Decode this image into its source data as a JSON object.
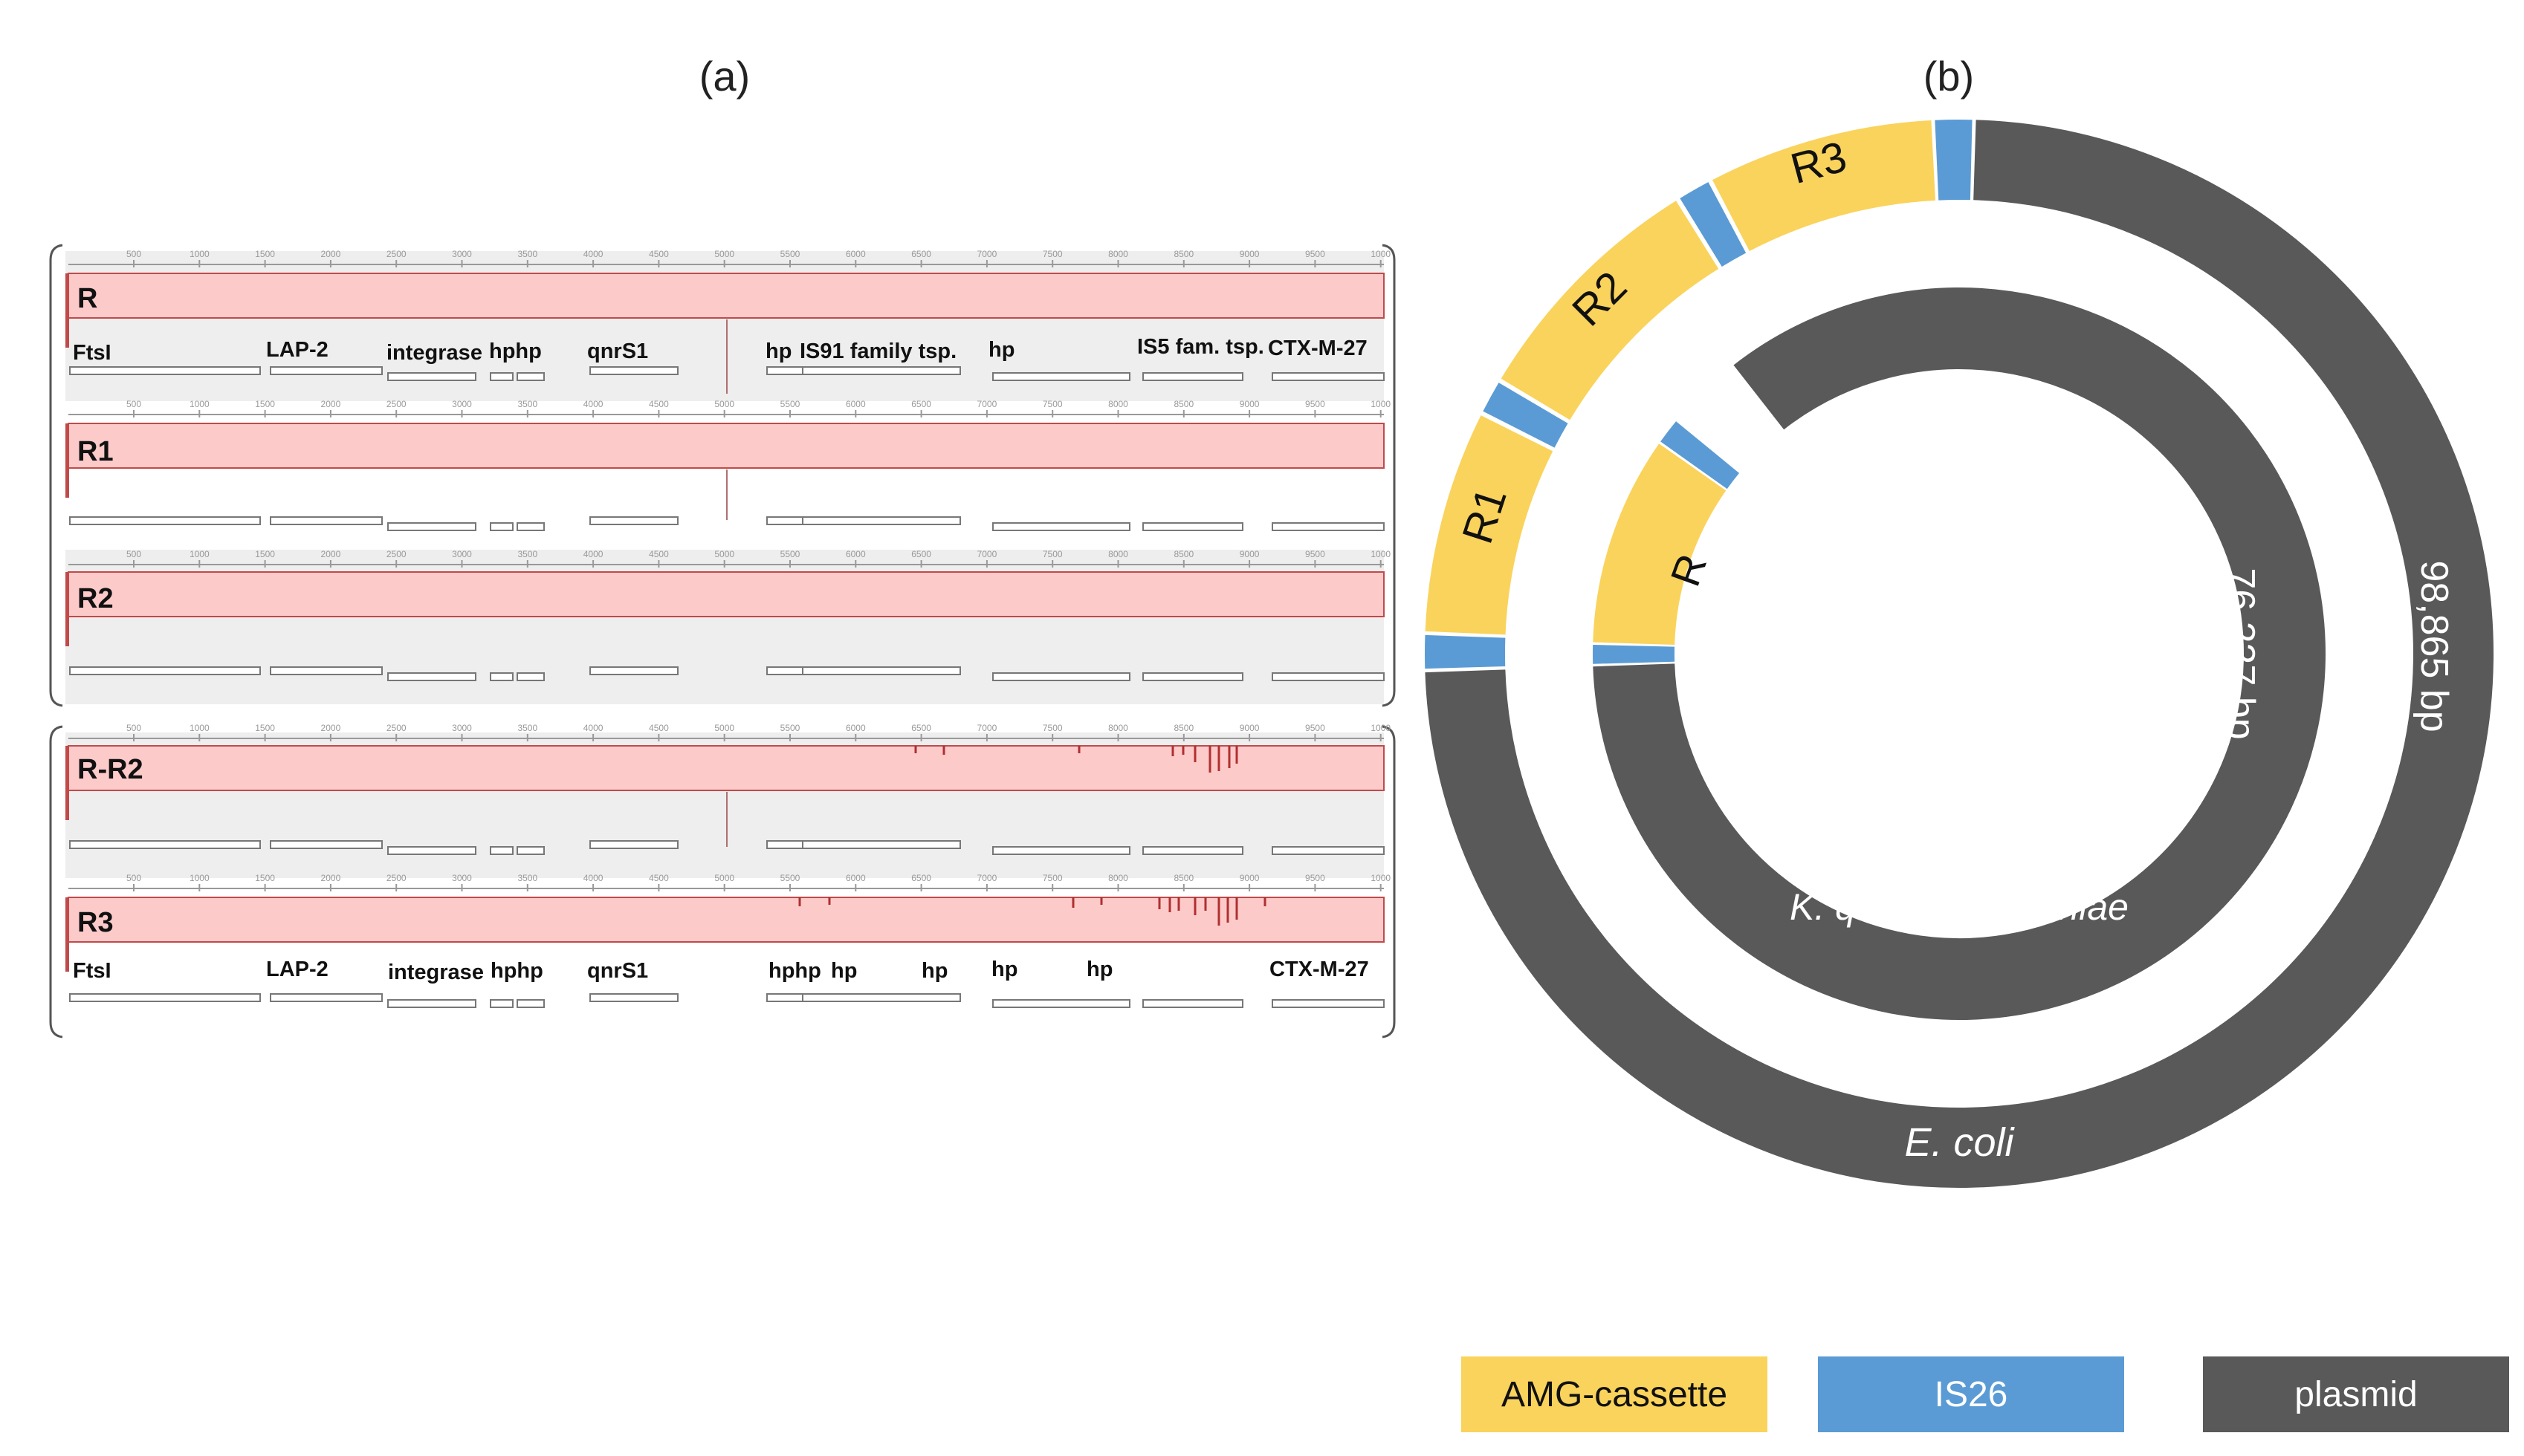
{
  "panel_labels": {
    "a": "(a)",
    "b": "(b)"
  },
  "ruler_ticks": [
    "500",
    "1000",
    "1500",
    "2000",
    "2500",
    "3000",
    "3500",
    "4000",
    "4500",
    "5000",
    "5500",
    "6000",
    "6500",
    "7000",
    "7500",
    "8000",
    "8500",
    "9000",
    "9500",
    "1000"
  ],
  "tracks": [
    {
      "id": "R",
      "label": "R"
    },
    {
      "id": "R1",
      "label": "R1"
    },
    {
      "id": "R2",
      "label": "R2"
    },
    {
      "id": "R-R2",
      "label": "R-R2"
    },
    {
      "id": "R3",
      "label": "R3"
    }
  ],
  "genes_R": [
    "FtsI",
    "LAP-2",
    "integrase",
    "hphp",
    "qnrS1",
    "hp",
    "IS91 family tsp.",
    "hp",
    "IS5 fam. tsp.",
    "CTX-M-27"
  ],
  "genes_R3": [
    "FtsI",
    "LAP-2",
    "integrase",
    "hphp",
    "qnrS1",
    "hphp",
    "hp",
    "hp",
    "hp",
    "hp",
    "CTX-M-27"
  ],
  "rings": {
    "outer": {
      "segments": [
        "R1",
        "R2",
        "R3"
      ],
      "size_label": "98,865 bp",
      "organism": "E. coli"
    },
    "inner": {
      "segments": [
        "R"
      ],
      "size_label": "76,237 bp",
      "organism": "K. quasipneumoniae"
    }
  },
  "legend": [
    {
      "label": "AMG-cassette",
      "color": "#fad35c"
    },
    {
      "label": "IS26",
      "color": "#5b9bd5"
    },
    {
      "label": "plasmid",
      "color": "#595959"
    }
  ],
  "colors": {
    "cassette": "#fad35c",
    "is26": "#5b9bd5",
    "plasmid": "#595959",
    "track_pink": "#fdcaca",
    "track_bg": "#eeeeee"
  }
}
